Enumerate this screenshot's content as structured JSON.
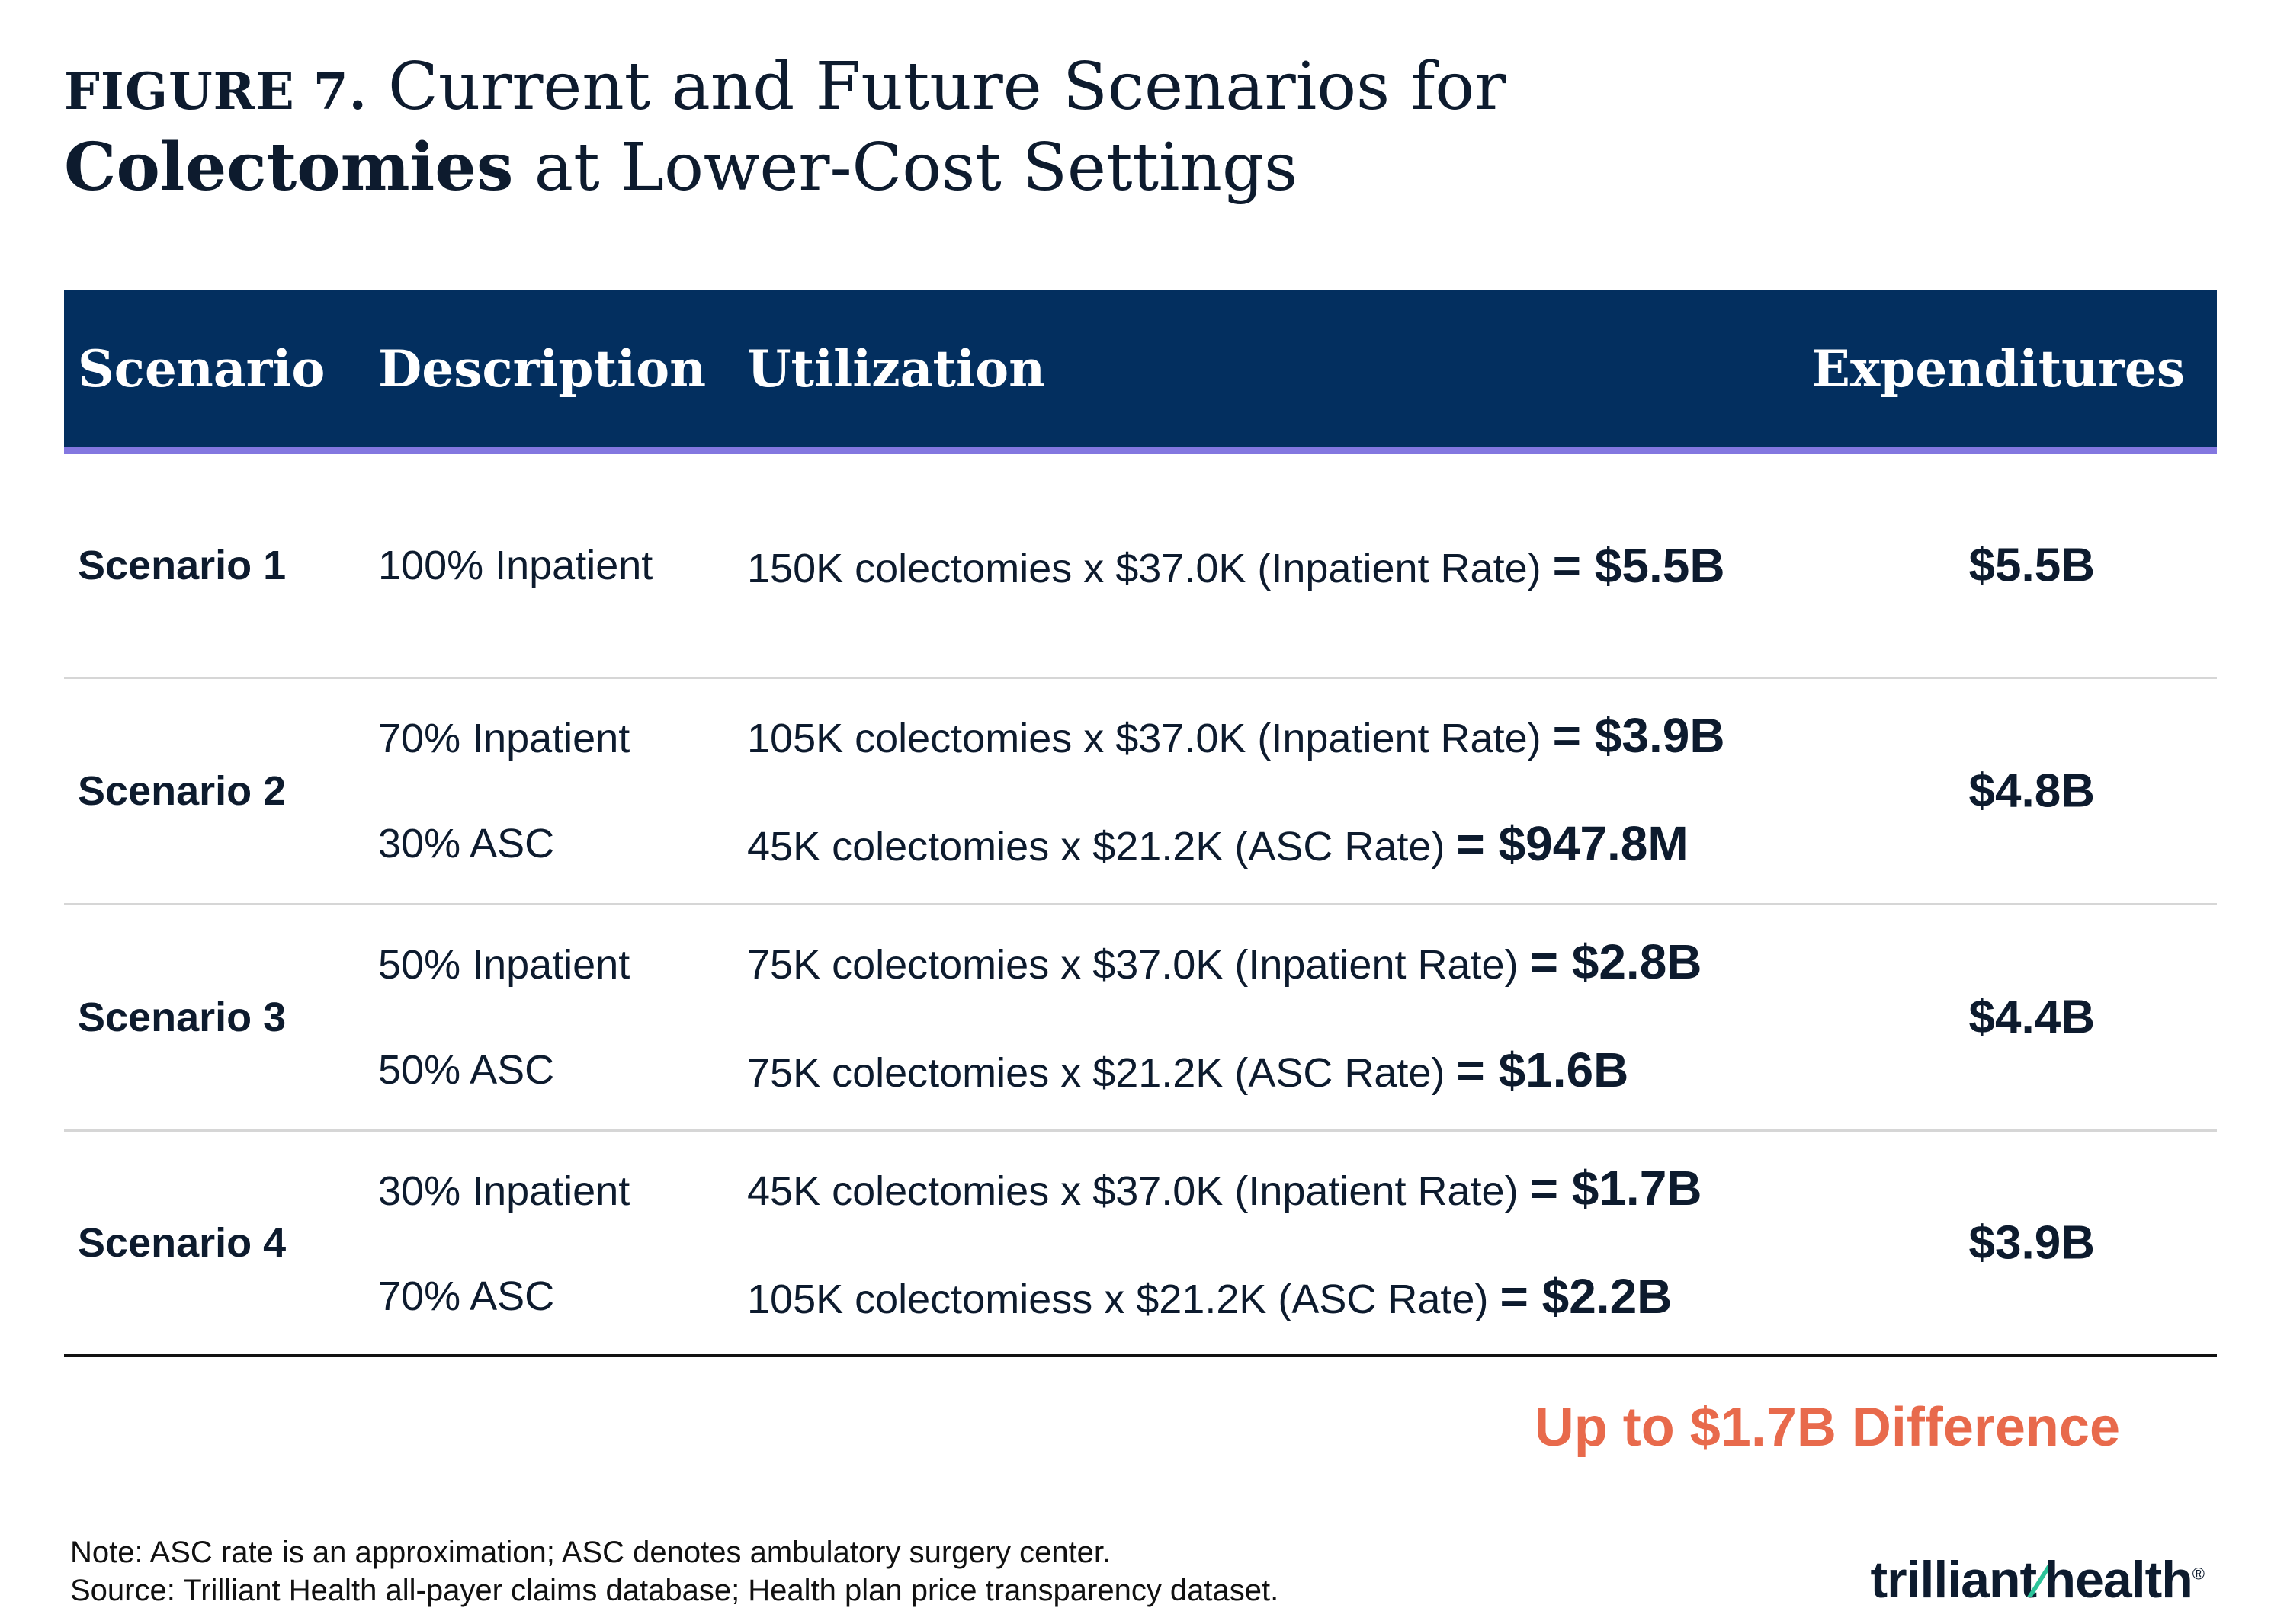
{
  "title": {
    "figure_label": "FIGURE 7.",
    "text_before": " Current and Future Scenarios for ",
    "bold_word": "Colectomies",
    "text_after": " at Lower-Cost Settings"
  },
  "table": {
    "headers": {
      "scenario": "Scenario",
      "description": "Description",
      "utilization": "Utilization",
      "expenditures": "Expenditures"
    },
    "rows": [
      {
        "scenario": "Scenario 1",
        "desc": [
          "100% Inpatient"
        ],
        "calc": [
          {
            "text": "150K colectomies x $37.0K (Inpatient Rate) ",
            "eq": "= ",
            "result": "$5.5B"
          }
        ],
        "expenditure": "$5.5B"
      },
      {
        "scenario": "Scenario 2",
        "desc": [
          "70% Inpatient",
          "30% ASC"
        ],
        "calc": [
          {
            "text": "105K colectomies x $37.0K (Inpatient Rate) ",
            "eq": "= ",
            "result": "$3.9B"
          },
          {
            "text": "45K colectomies x $21.2K (ASC Rate) ",
            "eq": "= ",
            "result": "$947.8M"
          }
        ],
        "expenditure": "$4.8B"
      },
      {
        "scenario": "Scenario 3",
        "desc": [
          "50% Inpatient",
          "50% ASC"
        ],
        "calc": [
          {
            "text": "75K colectomies x $37.0K (Inpatient Rate) ",
            "eq": "= ",
            "result": "$2.8B"
          },
          {
            "text": "75K colectomies x $21.2K (ASC Rate) ",
            "eq": "= ",
            "result": "$1.6B"
          }
        ],
        "expenditure": "$4.4B"
      },
      {
        "scenario": "Scenario 4",
        "desc": [
          "30% Inpatient",
          "70% ASC"
        ],
        "calc": [
          {
            "text": "45K colectomies x $37.0K (Inpatient Rate) ",
            "eq": "= ",
            "result": "$1.7B"
          },
          {
            "text": "105K colectomiess x $21.2K (ASC Rate) ",
            "eq": "= ",
            "result": "$2.2B"
          }
        ],
        "expenditure": "$3.9B"
      }
    ]
  },
  "difference_callout": "Up to $1.7B Difference",
  "notes": {
    "note": "Note: ASC rate is an approximation; ASC denotes ambulatory surgery center.",
    "source": "Source: Trilliant Health all-payer claims database; Health plan price transparency dataset."
  },
  "logo": {
    "part1": "trilliant",
    "part2": "health",
    "mark": "®"
  },
  "colors": {
    "header_bg": "#032f5f",
    "header_underline": "#8377e0",
    "callout": "#e86a4c",
    "logo_accent": "#2cc49a"
  }
}
